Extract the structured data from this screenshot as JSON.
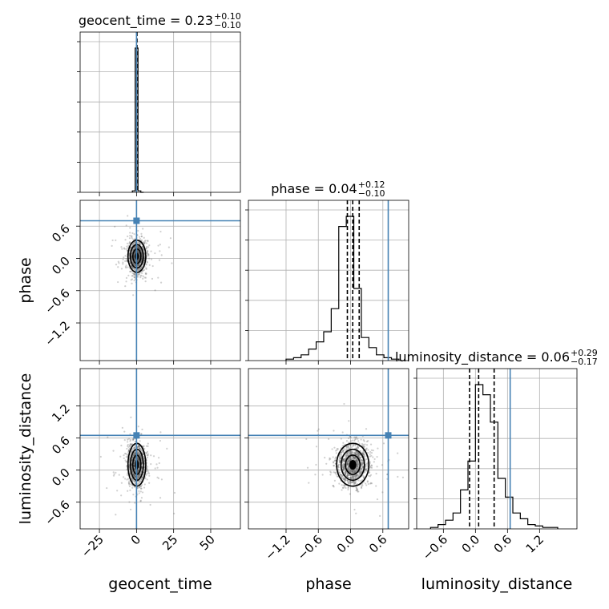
{
  "chart_data": {
    "type": "scatter",
    "parameters": [
      "geocent_time",
      "phase",
      "luminosity_distance"
    ],
    "axis_labels": {
      "geocent_time": "geocent_time",
      "phase": "phase",
      "luminosity_distance": "luminosity_distance"
    },
    "titles": {
      "geocent_time": {
        "text": "geocent_time = 0.23",
        "plus": "+0.10",
        "minus": "−0.10"
      },
      "phase": {
        "text": "phase = 0.04",
        "plus": "+0.12",
        "minus": "−0.10"
      },
      "luminosity_distance": {
        "text": "luminosity_distance = 0.06",
        "plus": "+0.29",
        "minus": "−0.17"
      }
    },
    "ranges": {
      "geocent_time": [
        -38,
        70
      ],
      "phase": [
        -1.9,
        1.08
      ],
      "luminosity_distance": [
        -1.1,
        1.9
      ]
    },
    "ticks": {
      "geocent_time": [
        -25,
        0,
        25,
        50
      ],
      "phase": [
        -1.2,
        -0.6,
        0.0,
        0.6
      ],
      "luminosity_distance": [
        -0.6,
        0.0,
        0.6,
        1.2
      ]
    },
    "tick_labels": {
      "geocent_time": [
        "−25",
        "0",
        "25",
        "50"
      ],
      "phase": [
        "−1.2",
        "−0.6",
        "0.0",
        "0.6"
      ],
      "luminosity_distance": [
        "−0.6",
        "0.0",
        "0.6",
        "1.2"
      ]
    },
    "truths": {
      "geocent_time": 0.0,
      "phase": 0.7,
      "luminosity_distance": 0.65
    },
    "quantiles": {
      "geocent_time": [
        0.13,
        0.23,
        0.33
      ],
      "phase": [
        -0.06,
        0.04,
        0.16
      ],
      "luminosity_distance": [
        -0.11,
        0.06,
        0.35
      ]
    },
    "histograms": {
      "geocent_time": {
        "bin_edges": [
          -2.8,
          -0.9,
          1.0,
          2.9,
          4.8
        ],
        "counts": [
          0.01,
          1.0,
          0.01,
          0.0
        ]
      },
      "phase": {
        "bin_edges": [
          -1.2,
          -1.06,
          -0.92,
          -0.78,
          -0.64,
          -0.5,
          -0.36,
          -0.22,
          -0.08,
          0.06,
          0.2,
          0.34,
          0.48,
          0.62,
          0.76,
          0.9
        ],
        "counts": [
          0.01,
          0.02,
          0.04,
          0.08,
          0.13,
          0.2,
          0.36,
          0.93,
          1.0,
          0.5,
          0.16,
          0.09,
          0.04,
          0.02,
          0.01
        ]
      },
      "luminosity_distance": {
        "bin_edges": [
          -0.84,
          -0.7,
          -0.56,
          -0.42,
          -0.28,
          -0.14,
          0.0,
          0.14,
          0.28,
          0.42,
          0.56,
          0.7,
          0.84,
          0.98,
          1.12,
          1.26,
          1.4,
          1.54
        ],
        "counts": [
          0.01,
          0.03,
          0.06,
          0.11,
          0.27,
          0.47,
          1.0,
          0.93,
          0.74,
          0.35,
          0.22,
          0.11,
          0.07,
          0.03,
          0.02,
          0.01,
          0.01
        ]
      }
    },
    "sample_spread": {
      "geocent_time": {
        "center": 0.23,
        "sd": 3.0
      },
      "phase": {
        "center": 0.04,
        "sd": 0.15
      },
      "luminosity_distance": {
        "center": 0.1,
        "sd": 0.2
      }
    },
    "grid": true,
    "legend": "none"
  }
}
